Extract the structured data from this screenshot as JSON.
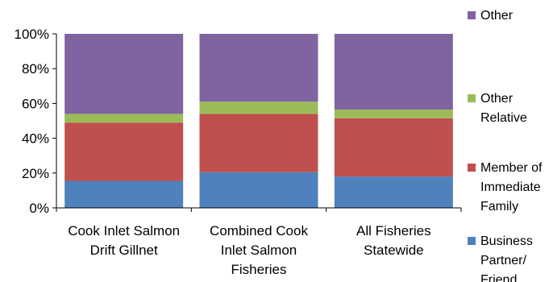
{
  "chart_data": {
    "type": "bar",
    "stacked": "percent",
    "categories": [
      [
        "Cook Inlet Salmon",
        "Drift Gillnet"
      ],
      [
        "Combined Cook",
        "Inlet Salmon",
        "Fisheries"
      ],
      [
        "All Fisheries",
        "Statewide"
      ]
    ],
    "series": [
      {
        "name": [
          "Business",
          "Partner/",
          "Friend"
        ],
        "color": "#4f81bd",
        "values": [
          15.5,
          20.5,
          18
        ]
      },
      {
        "name": [
          "Member of",
          "Immediate",
          "Family"
        ],
        "color": "#c0504d",
        "values": [
          33.5,
          33.5,
          33.5
        ]
      },
      {
        "name": [
          "Other",
          "Relative"
        ],
        "color": "#9bbb59",
        "values": [
          5,
          7,
          5
        ]
      },
      {
        "name": [
          "Other"
        ],
        "color": "#8064a2",
        "values": [
          46,
          39,
          43.5
        ]
      }
    ],
    "y_ticks": [
      "0%",
      "20%",
      "40%",
      "60%",
      "80%",
      "100%"
    ],
    "ylim": [
      0,
      100
    ],
    "grid": false,
    "legend": "right"
  }
}
